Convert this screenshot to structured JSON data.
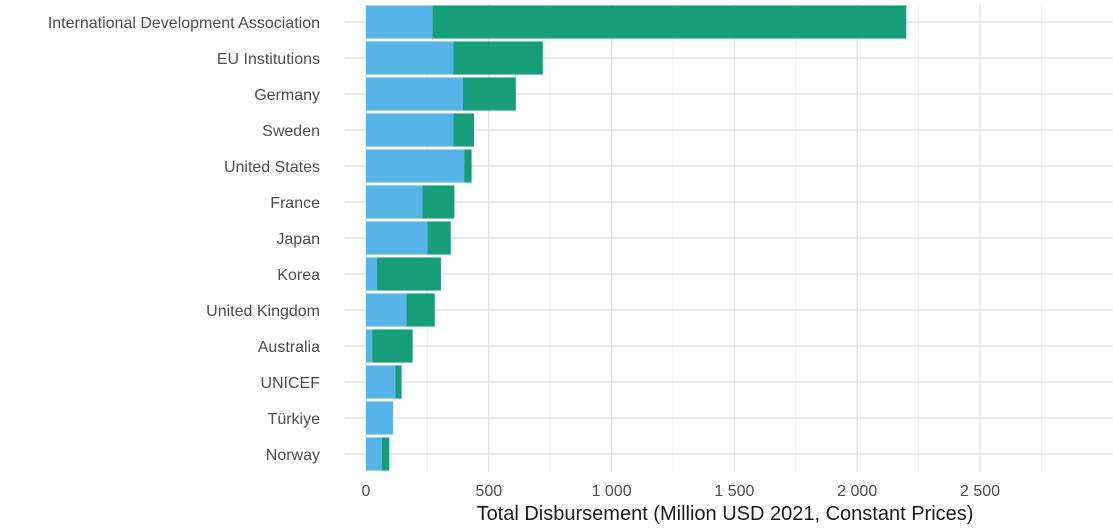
{
  "chart_data": {
    "type": "bar",
    "orientation": "horizontal",
    "stacked": true,
    "categories": [
      "International Development Association",
      "EU Institutions",
      "Germany",
      "Sweden",
      "United States",
      "France",
      "Japan",
      "Korea",
      "United Kingdom",
      "Australia",
      "UNICEF",
      "Türkiye",
      "Norway"
    ],
    "series": [
      {
        "color": "#56b4e9",
        "values": [
          270,
          355,
          395,
          355,
          400,
          230,
          250,
          45,
          165,
          25,
          120,
          110,
          65
        ]
      },
      {
        "color": "#169e79",
        "values": [
          1930,
          365,
          215,
          85,
          30,
          130,
          95,
          260,
          115,
          165,
          25,
          0,
          30
        ]
      }
    ],
    "xlabel": "Total Disbursement (Million USD 2021, Constant Prices)",
    "ylabel": "",
    "xlim": [
      -80,
      3000
    ],
    "x_ticks": [
      0,
      500,
      1000,
      1500,
      2000,
      2500
    ],
    "x_tick_labels": [
      "0",
      "500",
      "1 000",
      "1 500",
      "2 000",
      "2 500"
    ],
    "grid": true,
    "legend": "none"
  }
}
